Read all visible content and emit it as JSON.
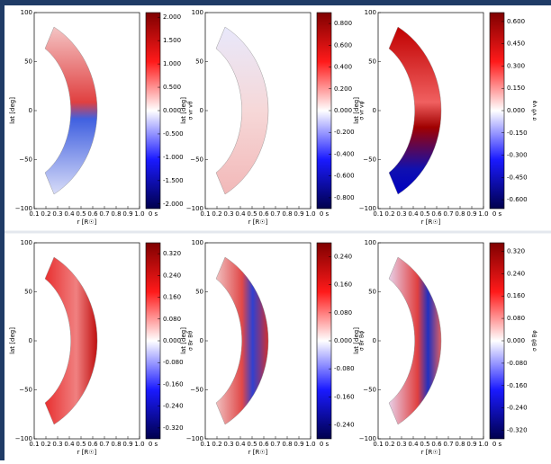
{
  "panels": [
    {
      "ylabel": "lat [deg]",
      "xlabel": "r [R☉]",
      "time": "0 s",
      "cbar_label": "σ vr vθ",
      "xlim": [
        0.1,
        1.0
      ],
      "ylim": [
        -100,
        100
      ],
      "xticks": [
        0.1,
        0.2,
        0.3,
        0.4,
        0.5,
        0.6,
        0.7,
        0.8,
        0.9,
        {
          "value": 1.0,
          "label": "1.0"
        }
      ],
      "yticks": [
        {
          "value": 100,
          "label": "100"
        },
        {
          "value": 50,
          "label": "50"
        },
        {
          "value": 0,
          "label": "0"
        },
        {
          "value": -50,
          "label": "−50"
        },
        {
          "value": -100,
          "label": "−100"
        }
      ],
      "clim": [
        -2.1,
        2.1
      ],
      "cticks": [
        {
          "value": 2,
          "label": "2.000"
        },
        {
          "value": 1.5,
          "label": "1.500"
        },
        {
          "value": 1,
          "label": "1.000"
        },
        {
          "value": 0.5,
          "label": "0.500"
        },
        {
          "value": 0,
          "label": "0.000"
        },
        {
          "value": -0.5,
          "label": "-0.500"
        },
        {
          "value": -1,
          "label": "-1.000"
        },
        {
          "value": -1.5,
          "label": "-1.500"
        },
        {
          "value": -2,
          "label": "-2.000"
        }
      ]
    },
    {
      "ylabel": "lat [deg]",
      "xlabel": "r [R☉]",
      "time": "0 s",
      "cbar_label": "σ vr vφ",
      "xlim": [
        0.1,
        1.0
      ],
      "ylim": [
        -100,
        100
      ],
      "xticks": [
        0.1,
        0.2,
        0.3,
        0.4,
        0.5,
        0.6,
        0.7,
        0.8,
        0.9,
        {
          "value": 1.0,
          "label": "1.0"
        }
      ],
      "yticks": [
        {
          "value": 100,
          "label": "100"
        },
        {
          "value": 50,
          "label": "50"
        },
        {
          "value": 0,
          "label": "0"
        },
        {
          "value": -50,
          "label": "−50"
        },
        {
          "value": -100,
          "label": "−100"
        }
      ],
      "clim": [
        -0.9,
        0.9
      ],
      "cticks": [
        {
          "value": 0.8,
          "label": "0.800"
        },
        {
          "value": 0.6,
          "label": "0.600"
        },
        {
          "value": 0.4,
          "label": "0.400"
        },
        {
          "value": 0.2,
          "label": "0.200"
        },
        {
          "value": 0,
          "label": "0.000"
        },
        {
          "value": -0.2,
          "label": "-0.200"
        },
        {
          "value": -0.4,
          "label": "-0.400"
        },
        {
          "value": -0.6,
          "label": "-0.600"
        },
        {
          "value": -0.8,
          "label": "-0.800"
        }
      ]
    },
    {
      "ylabel": "lat [deg]",
      "xlabel": "r [R☉]",
      "time": "0 s",
      "cbar_label": "σ vθ vφ",
      "xlim": [
        0.1,
        1.0
      ],
      "ylim": [
        -100,
        100
      ],
      "xticks": [
        0.1,
        0.2,
        0.3,
        0.4,
        0.5,
        0.6,
        0.7,
        0.8,
        0.9,
        {
          "value": 1.0,
          "label": "1.0"
        }
      ],
      "yticks": [
        {
          "value": 100,
          "label": "100"
        },
        {
          "value": 50,
          "label": "50"
        },
        {
          "value": 0,
          "label": "0"
        },
        {
          "value": -50,
          "label": "−50"
        },
        {
          "value": -100,
          "label": "−100"
        }
      ],
      "clim": [
        -0.66,
        0.66
      ],
      "cticks": [
        {
          "value": 0.6,
          "label": "0.600"
        },
        {
          "value": 0.45,
          "label": "0.450"
        },
        {
          "value": 0.3,
          "label": "0.300"
        },
        {
          "value": 0.15,
          "label": "0.150"
        },
        {
          "value": 0,
          "label": "0.000"
        },
        {
          "value": -0.15,
          "label": "-0.150"
        },
        {
          "value": -0.3,
          "label": "-0.300"
        },
        {
          "value": -0.45,
          "label": "-0.450"
        },
        {
          "value": -0.6,
          "label": "-0.600"
        }
      ]
    },
    {
      "ylabel": "lat [deg]",
      "xlabel": "r [R☉]",
      "time": "0 s",
      "cbar_label": "σ Br Bθ",
      "xlim": [
        0.1,
        1.0
      ],
      "ylim": [
        -100,
        100
      ],
      "xticks": [
        0.1,
        0.2,
        0.3,
        0.4,
        0.5,
        0.6,
        0.7,
        0.8,
        0.9,
        {
          "value": 1.0,
          "label": "1.0"
        }
      ],
      "yticks": [
        {
          "value": 100,
          "label": "100"
        },
        {
          "value": 50,
          "label": "50"
        },
        {
          "value": 0,
          "label": "0"
        },
        {
          "value": -50,
          "label": "−50"
        },
        {
          "value": -100,
          "label": "−100"
        }
      ],
      "clim": [
        -0.36,
        0.36
      ],
      "cticks": [
        {
          "value": 0.32,
          "label": "0.320"
        },
        {
          "value": 0.24,
          "label": "0.240"
        },
        {
          "value": 0.16,
          "label": "0.160"
        },
        {
          "value": 0.08,
          "label": "0.080"
        },
        {
          "value": 0,
          "label": "0.000"
        },
        {
          "value": -0.08,
          "label": "-0.080"
        },
        {
          "value": -0.16,
          "label": "-0.160"
        },
        {
          "value": -0.24,
          "label": "-0.240"
        },
        {
          "value": -0.32,
          "label": "-0.320"
        }
      ]
    },
    {
      "ylabel": "lat [deg]",
      "xlabel": "r [R☉]",
      "time": "0 s",
      "cbar_label": "σ Br Bφ",
      "xlim": [
        0.1,
        1.0
      ],
      "ylim": [
        -100,
        100
      ],
      "xticks": [
        0.1,
        0.2,
        0.3,
        0.4,
        0.5,
        0.6,
        0.7,
        0.8,
        0.9,
        {
          "value": 1.0,
          "label": "1.0"
        }
      ],
      "yticks": [
        {
          "value": 100,
          "label": "100"
        },
        {
          "value": 50,
          "label": "50"
        },
        {
          "value": 0,
          "label": "0"
        },
        {
          "value": -50,
          "label": "−50"
        },
        {
          "value": -100,
          "label": "−100"
        }
      ],
      "clim": [
        -0.28,
        0.28
      ],
      "cticks": [
        {
          "value": 0.24,
          "label": "0.240"
        },
        {
          "value": 0.16,
          "label": "0.160"
        },
        {
          "value": 0.08,
          "label": "0.080"
        },
        {
          "value": 0,
          "label": "0.000"
        },
        {
          "value": -0.08,
          "label": "-0.080"
        },
        {
          "value": -0.16,
          "label": "-0.160"
        },
        {
          "value": -0.24,
          "label": "-0.240"
        }
      ]
    },
    {
      "ylabel": "lat [deg]",
      "xlabel": "r [R☉]",
      "time": "0 s",
      "cbar_label": "σ Bθ Bφ",
      "xlim": [
        0.1,
        1.0
      ],
      "ylim": [
        -100,
        100
      ],
      "xticks": [
        0.1,
        0.2,
        0.3,
        0.4,
        0.5,
        0.6,
        0.7,
        0.8,
        0.9,
        {
          "value": 1.0,
          "label": "1.0"
        }
      ],
      "yticks": [
        {
          "value": 100,
          "label": "100"
        },
        {
          "value": 50,
          "label": "50"
        },
        {
          "value": 0,
          "label": "0"
        },
        {
          "value": -50,
          "label": "−50"
        },
        {
          "value": -100,
          "label": "−100"
        }
      ],
      "clim": [
        -0.35,
        0.35
      ],
      "cticks": [
        {
          "value": 0.32,
          "label": "0.320"
        },
        {
          "value": 0.24,
          "label": "0.240"
        },
        {
          "value": 0.16,
          "label": "0.160"
        },
        {
          "value": 0.08,
          "label": "0.080"
        },
        {
          "value": 0,
          "label": "0.000"
        },
        {
          "value": -0.08,
          "label": "-0.080"
        },
        {
          "value": -0.16,
          "label": "-0.160"
        },
        {
          "value": -0.24,
          "label": "-0.240"
        },
        {
          "value": -0.32,
          "label": "-0.320"
        }
      ]
    }
  ]
}
